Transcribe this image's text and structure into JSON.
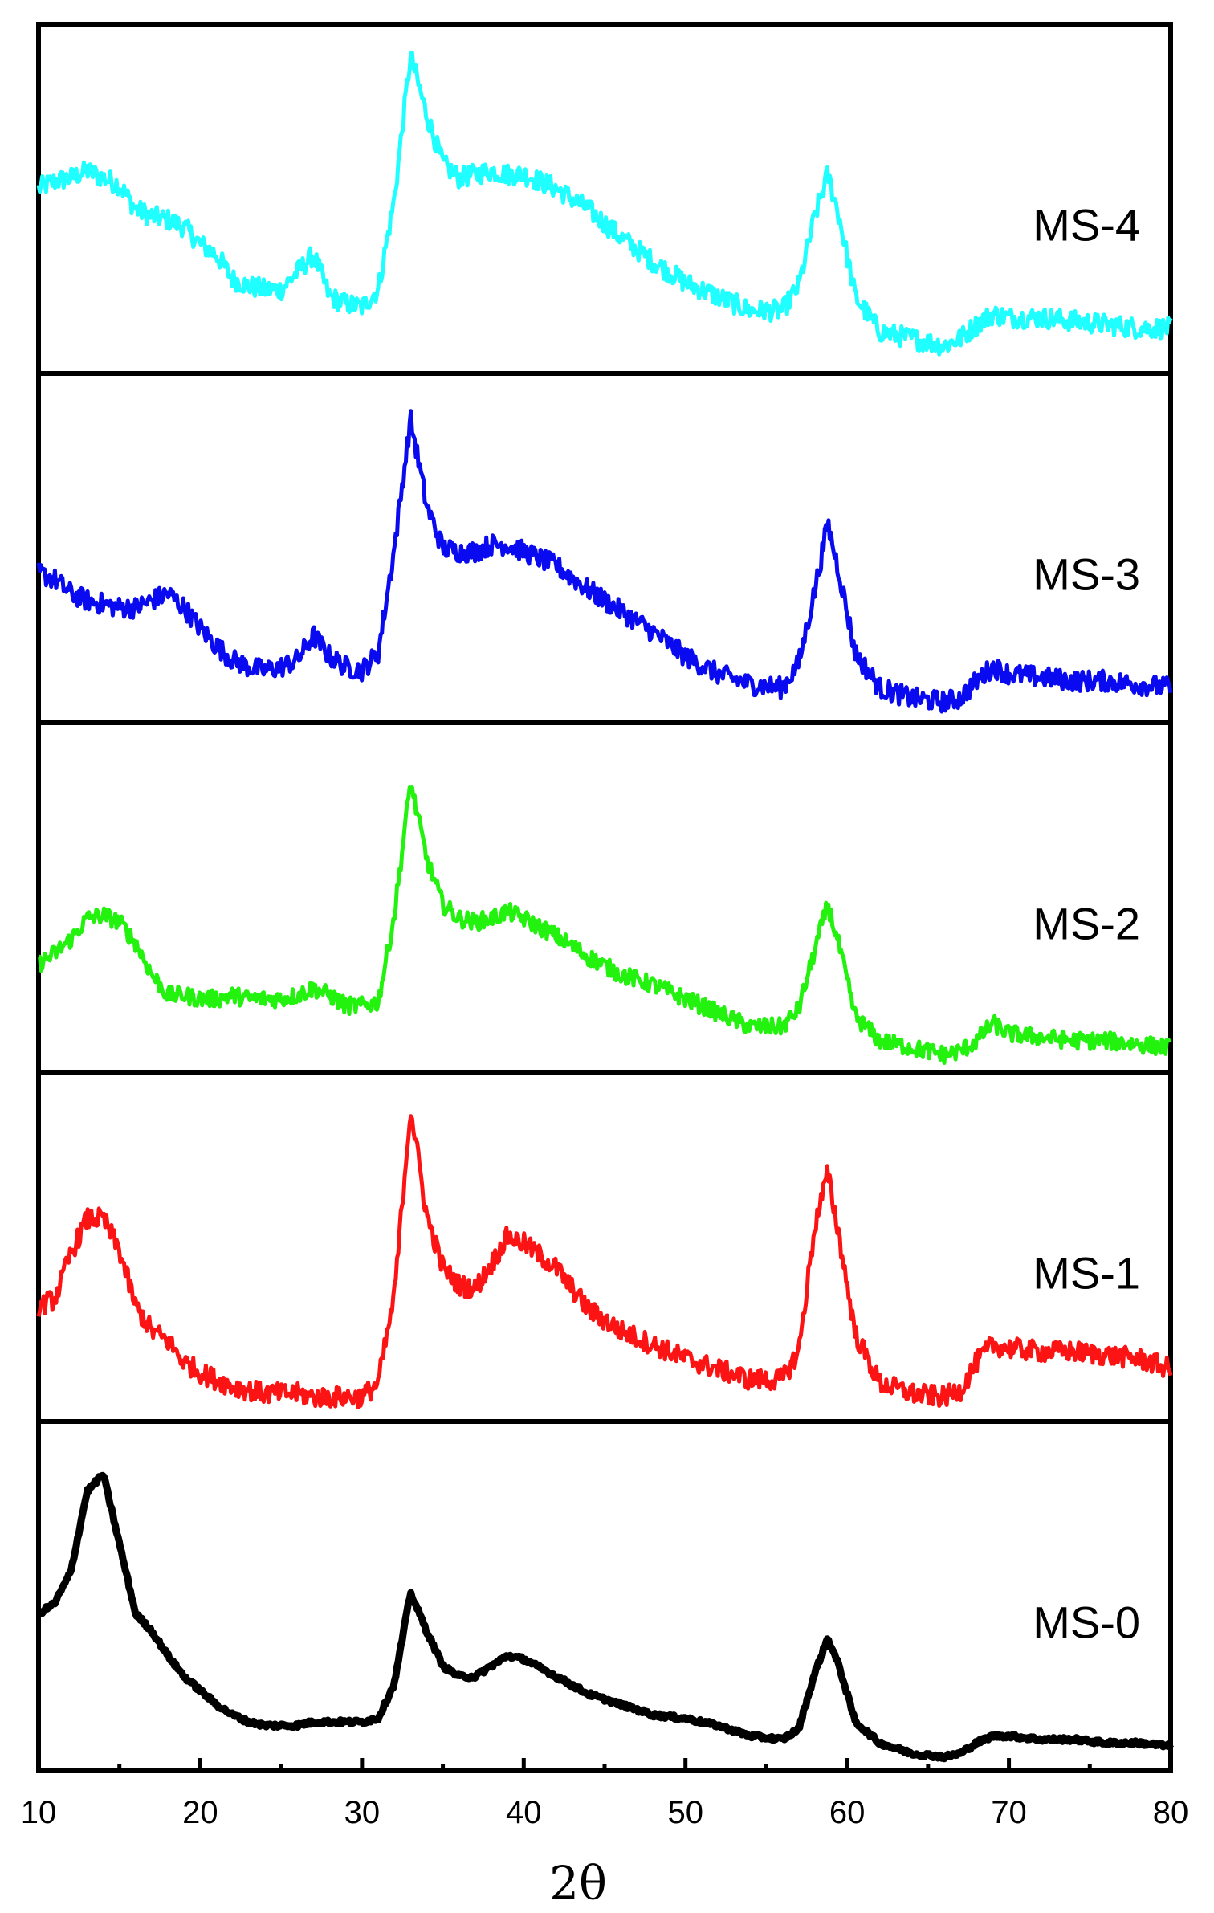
{
  "chart_data": {
    "type": "line",
    "title": "",
    "xlabel": "2θ",
    "ylabel": "",
    "xlim": [
      10,
      80
    ],
    "x_ticks": [
      10,
      20,
      30,
      40,
      50,
      60,
      70,
      80
    ],
    "x_tick_labels": [
      "10",
      "20",
      "30",
      "40",
      "50",
      "60",
      "70",
      "80"
    ],
    "layout": "stacked panels, MS-4 top to MS-0 bottom, shared x axis",
    "y_units": "relative intensity (0 = panel baseline, 1 = panel top), no y ticks shown",
    "series": [
      {
        "name": "MS-4",
        "color": "#1fffff",
        "label": "MS-4",
        "noise": 0.03,
        "points": [
          [
            10,
            0.53
          ],
          [
            11,
            0.55
          ],
          [
            12,
            0.56
          ],
          [
            13,
            0.58
          ],
          [
            14,
            0.56
          ],
          [
            15,
            0.54
          ],
          [
            16,
            0.47
          ],
          [
            17,
            0.45
          ],
          [
            18,
            0.44
          ],
          [
            19,
            0.42
          ],
          [
            20,
            0.37
          ],
          [
            21,
            0.34
          ],
          [
            22,
            0.27
          ],
          [
            23,
            0.25
          ],
          [
            24,
            0.24
          ],
          [
            25,
            0.24
          ],
          [
            26,
            0.29
          ],
          [
            27,
            0.34
          ],
          [
            28,
            0.22
          ],
          [
            29,
            0.2
          ],
          [
            30,
            0.19
          ],
          [
            31,
            0.24
          ],
          [
            32,
            0.5
          ],
          [
            33,
            0.91
          ],
          [
            34,
            0.74
          ],
          [
            35,
            0.6
          ],
          [
            36,
            0.56
          ],
          [
            37,
            0.57
          ],
          [
            38,
            0.58
          ],
          [
            39,
            0.57
          ],
          [
            40,
            0.57
          ],
          [
            42,
            0.53
          ],
          [
            44,
            0.47
          ],
          [
            46,
            0.39
          ],
          [
            48,
            0.32
          ],
          [
            50,
            0.26
          ],
          [
            52,
            0.22
          ],
          [
            54,
            0.18
          ],
          [
            56,
            0.18
          ],
          [
            57,
            0.25
          ],
          [
            58,
            0.45
          ],
          [
            58.8,
            0.57
          ],
          [
            59.5,
            0.45
          ],
          [
            60.5,
            0.22
          ],
          [
            62,
            0.12
          ],
          [
            64,
            0.1
          ],
          [
            66,
            0.08
          ],
          [
            67,
            0.1
          ],
          [
            68,
            0.14
          ],
          [
            69,
            0.17
          ],
          [
            70,
            0.16
          ],
          [
            72,
            0.16
          ],
          [
            74,
            0.15
          ],
          [
            76,
            0.14
          ],
          [
            78,
            0.13
          ],
          [
            80,
            0.13
          ]
        ]
      },
      {
        "name": "MS-3",
        "color": "#0a0af0",
        "label": "MS-3",
        "noise": 0.03,
        "points": [
          [
            10,
            0.43
          ],
          [
            11,
            0.41
          ],
          [
            12,
            0.37
          ],
          [
            13,
            0.35
          ],
          [
            14,
            0.34
          ],
          [
            15,
            0.33
          ],
          [
            16,
            0.33
          ],
          [
            17,
            0.35
          ],
          [
            18,
            0.37
          ],
          [
            19,
            0.33
          ],
          [
            20,
            0.27
          ],
          [
            21,
            0.22
          ],
          [
            22,
            0.18
          ],
          [
            23,
            0.16
          ],
          [
            24,
            0.15
          ],
          [
            25,
            0.16
          ],
          [
            26,
            0.18
          ],
          [
            27,
            0.25
          ],
          [
            28,
            0.19
          ],
          [
            29,
            0.16
          ],
          [
            30,
            0.15
          ],
          [
            31,
            0.2
          ],
          [
            32,
            0.5
          ],
          [
            33,
            0.87
          ],
          [
            34,
            0.62
          ],
          [
            35,
            0.5
          ],
          [
            36,
            0.49
          ],
          [
            37,
            0.49
          ],
          [
            38,
            0.51
          ],
          [
            39,
            0.51
          ],
          [
            40,
            0.49
          ],
          [
            42,
            0.45
          ],
          [
            44,
            0.38
          ],
          [
            46,
            0.32
          ],
          [
            48,
            0.26
          ],
          [
            50,
            0.19
          ],
          [
            52,
            0.14
          ],
          [
            54,
            0.11
          ],
          [
            56,
            0.1
          ],
          [
            57,
            0.17
          ],
          [
            58,
            0.38
          ],
          [
            58.8,
            0.57
          ],
          [
            59.5,
            0.43
          ],
          [
            60.5,
            0.2
          ],
          [
            62,
            0.1
          ],
          [
            64,
            0.07
          ],
          [
            66,
            0.06
          ],
          [
            67,
            0.07
          ],
          [
            68,
            0.12
          ],
          [
            69,
            0.16
          ],
          [
            70,
            0.14
          ],
          [
            72,
            0.13
          ],
          [
            74,
            0.12
          ],
          [
            76,
            0.12
          ],
          [
            78,
            0.11
          ],
          [
            80,
            0.1
          ]
        ]
      },
      {
        "name": "MS-2",
        "color": "#22f20e",
        "label": "MS-2",
        "noise": 0.025,
        "points": [
          [
            10,
            0.31
          ],
          [
            11,
            0.34
          ],
          [
            12,
            0.38
          ],
          [
            13,
            0.44
          ],
          [
            14,
            0.45
          ],
          [
            15,
            0.43
          ],
          [
            16,
            0.37
          ],
          [
            17,
            0.28
          ],
          [
            18,
            0.22
          ],
          [
            19,
            0.22
          ],
          [
            20,
            0.21
          ],
          [
            21,
            0.21
          ],
          [
            22,
            0.22
          ],
          [
            23,
            0.21
          ],
          [
            24,
            0.21
          ],
          [
            25,
            0.21
          ],
          [
            26,
            0.22
          ],
          [
            27,
            0.24
          ],
          [
            28,
            0.22
          ],
          [
            29,
            0.19
          ],
          [
            30,
            0.19
          ],
          [
            31,
            0.2
          ],
          [
            32,
            0.45
          ],
          [
            33,
            0.83
          ],
          [
            34,
            0.61
          ],
          [
            35,
            0.48
          ],
          [
            36,
            0.44
          ],
          [
            37,
            0.43
          ],
          [
            38,
            0.44
          ],
          [
            39,
            0.46
          ],
          [
            40,
            0.44
          ],
          [
            42,
            0.39
          ],
          [
            44,
            0.33
          ],
          [
            46,
            0.28
          ],
          [
            48,
            0.25
          ],
          [
            50,
            0.21
          ],
          [
            52,
            0.17
          ],
          [
            54,
            0.13
          ],
          [
            56,
            0.13
          ],
          [
            57,
            0.18
          ],
          [
            58,
            0.35
          ],
          [
            58.8,
            0.48
          ],
          [
            59.5,
            0.36
          ],
          [
            60.5,
            0.16
          ],
          [
            62,
            0.09
          ],
          [
            64,
            0.07
          ],
          [
            66,
            0.05
          ],
          [
            67,
            0.06
          ],
          [
            68,
            0.09
          ],
          [
            69,
            0.14
          ],
          [
            70,
            0.11
          ],
          [
            72,
            0.1
          ],
          [
            74,
            0.09
          ],
          [
            76,
            0.09
          ],
          [
            78,
            0.08
          ],
          [
            80,
            0.07
          ]
        ]
      },
      {
        "name": "MS-1",
        "color": "#fc1414",
        "label": "MS-1",
        "noise": 0.03,
        "points": [
          [
            10,
            0.33
          ],
          [
            11,
            0.35
          ],
          [
            12,
            0.48
          ],
          [
            13,
            0.58
          ],
          [
            14,
            0.58
          ],
          [
            15,
            0.49
          ],
          [
            16,
            0.33
          ],
          [
            17,
            0.26
          ],
          [
            18,
            0.23
          ],
          [
            19,
            0.17
          ],
          [
            20,
            0.14
          ],
          [
            21,
            0.12
          ],
          [
            22,
            0.1
          ],
          [
            23,
            0.09
          ],
          [
            24,
            0.08
          ],
          [
            25,
            0.08
          ],
          [
            26,
            0.08
          ],
          [
            27,
            0.07
          ],
          [
            28,
            0.07
          ],
          [
            29,
            0.07
          ],
          [
            30,
            0.07
          ],
          [
            31,
            0.11
          ],
          [
            32,
            0.36
          ],
          [
            33,
            0.9
          ],
          [
            34,
            0.59
          ],
          [
            35,
            0.44
          ],
          [
            36,
            0.39
          ],
          [
            37,
            0.38
          ],
          [
            38,
            0.45
          ],
          [
            39,
            0.53
          ],
          [
            40,
            0.51
          ],
          [
            42,
            0.44
          ],
          [
            44,
            0.32
          ],
          [
            46,
            0.26
          ],
          [
            48,
            0.22
          ],
          [
            50,
            0.18
          ],
          [
            52,
            0.15
          ],
          [
            54,
            0.12
          ],
          [
            56,
            0.12
          ],
          [
            57,
            0.2
          ],
          [
            58,
            0.56
          ],
          [
            58.8,
            0.71
          ],
          [
            59.5,
            0.53
          ],
          [
            60.5,
            0.25
          ],
          [
            62,
            0.11
          ],
          [
            64,
            0.08
          ],
          [
            66,
            0.07
          ],
          [
            67,
            0.09
          ],
          [
            68,
            0.17
          ],
          [
            69,
            0.22
          ],
          [
            70,
            0.21
          ],
          [
            72,
            0.2
          ],
          [
            74,
            0.2
          ],
          [
            76,
            0.19
          ],
          [
            78,
            0.18
          ],
          [
            80,
            0.15
          ]
        ]
      },
      {
        "name": "MS-0",
        "color": "#000000",
        "label": "MS-0",
        "noise": 0.006,
        "points": [
          [
            10,
            0.45
          ],
          [
            11,
            0.48
          ],
          [
            12,
            0.57
          ],
          [
            13,
            0.8
          ],
          [
            14,
            0.85
          ],
          [
            15,
            0.65
          ],
          [
            16,
            0.45
          ],
          [
            17,
            0.4
          ],
          [
            18,
            0.33
          ],
          [
            19,
            0.27
          ],
          [
            20,
            0.23
          ],
          [
            21,
            0.19
          ],
          [
            22,
            0.16
          ],
          [
            23,
            0.14
          ],
          [
            24,
            0.13
          ],
          [
            25,
            0.13
          ],
          [
            26,
            0.13
          ],
          [
            27,
            0.14
          ],
          [
            28,
            0.14
          ],
          [
            29,
            0.14
          ],
          [
            30,
            0.14
          ],
          [
            31,
            0.15
          ],
          [
            32,
            0.25
          ],
          [
            33,
            0.51
          ],
          [
            34,
            0.4
          ],
          [
            35,
            0.3
          ],
          [
            36,
            0.27
          ],
          [
            37,
            0.27
          ],
          [
            38,
            0.3
          ],
          [
            39,
            0.33
          ],
          [
            40,
            0.32
          ],
          [
            42,
            0.27
          ],
          [
            44,
            0.22
          ],
          [
            46,
            0.19
          ],
          [
            48,
            0.16
          ],
          [
            50,
            0.15
          ],
          [
            52,
            0.13
          ],
          [
            54,
            0.1
          ],
          [
            56,
            0.09
          ],
          [
            57,
            0.12
          ],
          [
            58,
            0.28
          ],
          [
            58.8,
            0.38
          ],
          [
            59.5,
            0.3
          ],
          [
            60.5,
            0.14
          ],
          [
            62,
            0.08
          ],
          [
            64,
            0.05
          ],
          [
            66,
            0.04
          ],
          [
            67,
            0.05
          ],
          [
            68,
            0.08
          ],
          [
            69,
            0.1
          ],
          [
            70,
            0.1
          ],
          [
            72,
            0.09
          ],
          [
            74,
            0.09
          ],
          [
            76,
            0.08
          ],
          [
            78,
            0.08
          ],
          [
            80,
            0.07
          ]
        ]
      }
    ]
  }
}
